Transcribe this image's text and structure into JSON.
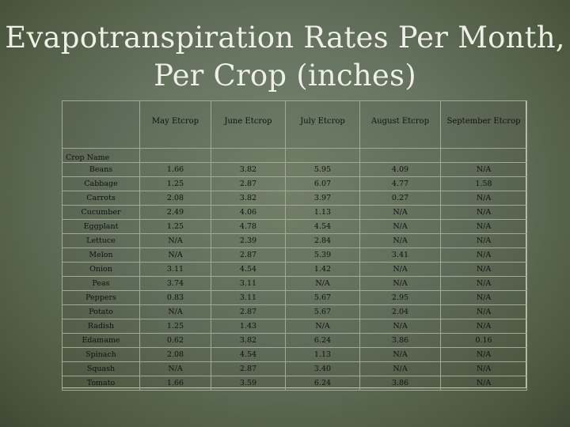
{
  "title_lines": [
    "Evapotranspiration Rates Per Month,",
    "Per Crop (inches)"
  ],
  "columns": [
    "May Etcrop",
    "June Etcrop",
    "July Etcrop",
    "August Etcrop",
    "September Etcrop"
  ],
  "row_header": "Crop Name",
  "rows": [
    {
      "crop": "Beans",
      "values": [
        "1.66",
        "3.82",
        "5.95",
        "4.09",
        "N/A"
      ]
    },
    {
      "crop": "Cabbage",
      "values": [
        "1.25",
        "2.87",
        "6.07",
        "4.77",
        "1.58"
      ]
    },
    {
      "crop": "Carrots",
      "values": [
        "2.08",
        "3.82",
        "3.97",
        "0.27",
        "N/A"
      ]
    },
    {
      "crop": "Cucumber",
      "values": [
        "2.49",
        "4.06",
        "1.13",
        "N/A",
        "N/A"
      ]
    },
    {
      "crop": "Eggplant",
      "values": [
        "1.25",
        "4.78",
        "4.54",
        "N/A",
        "N/A"
      ]
    },
    {
      "crop": "Lettuce",
      "values": [
        "N/A",
        "2.39",
        "2.84",
        "N/A",
        "N/A"
      ]
    },
    {
      "crop": "Melon",
      "values": [
        "N/A",
        "2.87",
        "5.39",
        "3.41",
        "N/A"
      ]
    },
    {
      "crop": "Onion",
      "values": [
        "3.11",
        "4.54",
        "1.42",
        "N/A",
        "N/A"
      ]
    },
    {
      "crop": "Peas",
      "values": [
        "3.74",
        "3.11",
        "N/A",
        "N/A",
        "N/A"
      ]
    },
    {
      "crop": "Peppers",
      "values": [
        "0.83",
        "3.11",
        "5.67",
        "2.95",
        "N/A"
      ]
    },
    {
      "crop": "Potato",
      "values": [
        "N/A",
        "2.87",
        "5.67",
        "2.04",
        "N/A"
      ]
    },
    {
      "crop": "Radish",
      "values": [
        "1.25",
        "1.43",
        "N/A",
        "N/A",
        "N/A"
      ]
    },
    {
      "crop": "Edamame",
      "values": [
        "0.62",
        "3.82",
        "6.24",
        "3.86",
        "0.16"
      ]
    },
    {
      "crop": "Spinach",
      "values": [
        "2.08",
        "4.54",
        "1.13",
        "N/A",
        "N/A"
      ]
    },
    {
      "crop": "Squash",
      "values": [
        "N/A",
        "2.87",
        "3.40",
        "N/A",
        "N/A"
      ]
    },
    {
      "crop": "Tomato",
      "values": [
        "1.66",
        "3.59",
        "6.24",
        "3.86",
        "N/A"
      ]
    }
  ]
}
